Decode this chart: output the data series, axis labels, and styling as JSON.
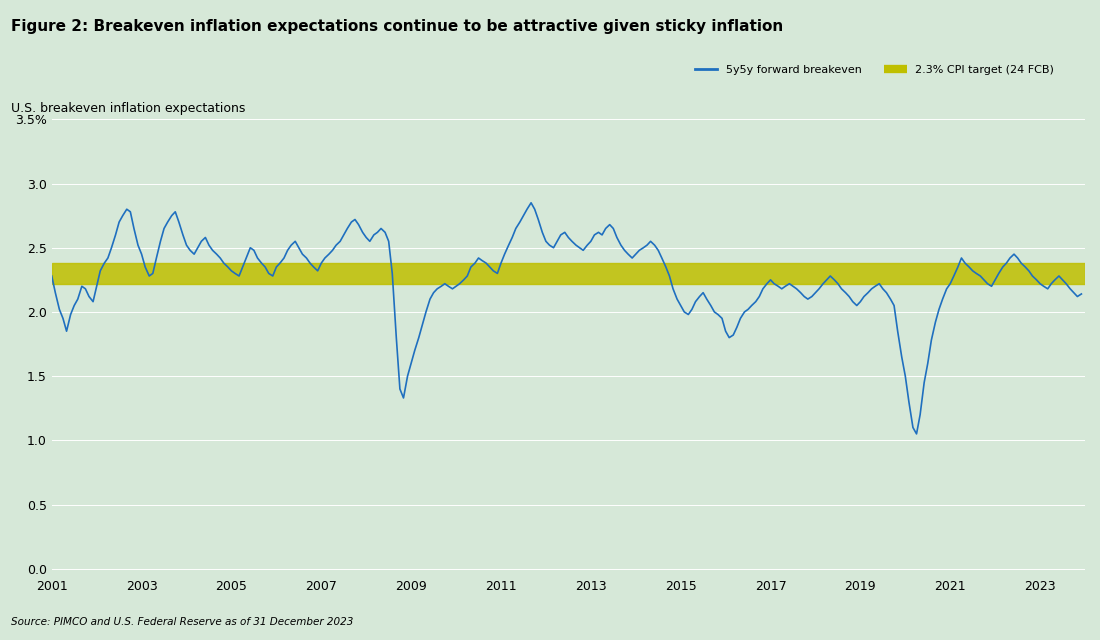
{
  "title": "Figure 2: Breakeven inflation expectations continue to be attractive given sticky inflation",
  "ylabel": "U.S. breakeven inflation expectations",
  "source": "Source: PIMCO and U.S. Federal Reserve as of 31 December 2023",
  "line_color": "#1F6FBF",
  "target_color": "#BFBF00",
  "target_value": 2.3,
  "target_band_low": 2.22,
  "target_band_high": 2.38,
  "yticks": [
    0.0,
    0.5,
    1.0,
    1.5,
    2.0,
    2.5,
    3.0,
    3.5
  ],
  "ytick_labels": [
    "0.0",
    "0.5",
    "1.0",
    "1.5",
    "2.0",
    "2.5",
    "3.0",
    "3.5%"
  ],
  "xticks": [
    2001,
    2003,
    2005,
    2007,
    2009,
    2011,
    2013,
    2015,
    2017,
    2019,
    2021,
    2023
  ],
  "ylim": [
    -0.05,
    3.7
  ],
  "background_color": "#d6e8d8",
  "legend_line1": "5y5y forward breakeven",
  "legend_line2": "2.3% CPI target (24 FCB)",
  "title_fontsize": 11,
  "label_fontsize": 9,
  "tick_fontsize": 9,
  "data": {
    "dates": [
      2001.0,
      2001.08,
      2001.17,
      2001.25,
      2001.33,
      2001.42,
      2001.5,
      2001.58,
      2001.67,
      2001.75,
      2001.83,
      2001.92,
      2002.0,
      2002.08,
      2002.17,
      2002.25,
      2002.33,
      2002.42,
      2002.5,
      2002.58,
      2002.67,
      2002.75,
      2002.83,
      2002.92,
      2003.0,
      2003.08,
      2003.17,
      2003.25,
      2003.33,
      2003.42,
      2003.5,
      2003.58,
      2003.67,
      2003.75,
      2003.83,
      2003.92,
      2004.0,
      2004.08,
      2004.17,
      2004.25,
      2004.33,
      2004.42,
      2004.5,
      2004.58,
      2004.67,
      2004.75,
      2004.83,
      2004.92,
      2005.0,
      2005.08,
      2005.17,
      2005.25,
      2005.33,
      2005.42,
      2005.5,
      2005.58,
      2005.67,
      2005.75,
      2005.83,
      2005.92,
      2006.0,
      2006.08,
      2006.17,
      2006.25,
      2006.33,
      2006.42,
      2006.5,
      2006.58,
      2006.67,
      2006.75,
      2006.83,
      2006.92,
      2007.0,
      2007.08,
      2007.17,
      2007.25,
      2007.33,
      2007.42,
      2007.5,
      2007.58,
      2007.67,
      2007.75,
      2007.83,
      2007.92,
      2008.0,
      2008.08,
      2008.17,
      2008.25,
      2008.33,
      2008.42,
      2008.5,
      2008.58,
      2008.67,
      2008.75,
      2008.83,
      2008.92,
      2009.0,
      2009.08,
      2009.17,
      2009.25,
      2009.33,
      2009.42,
      2009.5,
      2009.58,
      2009.67,
      2009.75,
      2009.83,
      2009.92,
      2010.0,
      2010.08,
      2010.17,
      2010.25,
      2010.33,
      2010.42,
      2010.5,
      2010.58,
      2010.67,
      2010.75,
      2010.83,
      2010.92,
      2011.0,
      2011.08,
      2011.17,
      2011.25,
      2011.33,
      2011.42,
      2011.5,
      2011.58,
      2011.67,
      2011.75,
      2011.83,
      2011.92,
      2012.0,
      2012.08,
      2012.17,
      2012.25,
      2012.33,
      2012.42,
      2012.5,
      2012.58,
      2012.67,
      2012.75,
      2012.83,
      2012.92,
      2013.0,
      2013.08,
      2013.17,
      2013.25,
      2013.33,
      2013.42,
      2013.5,
      2013.58,
      2013.67,
      2013.75,
      2013.83,
      2013.92,
      2014.0,
      2014.08,
      2014.17,
      2014.25,
      2014.33,
      2014.42,
      2014.5,
      2014.58,
      2014.67,
      2014.75,
      2014.83,
      2014.92,
      2015.0,
      2015.08,
      2015.17,
      2015.25,
      2015.33,
      2015.42,
      2015.5,
      2015.58,
      2015.67,
      2015.75,
      2015.83,
      2015.92,
      2016.0,
      2016.08,
      2016.17,
      2016.25,
      2016.33,
      2016.42,
      2016.5,
      2016.58,
      2016.67,
      2016.75,
      2016.83,
      2016.92,
      2017.0,
      2017.08,
      2017.17,
      2017.25,
      2017.33,
      2017.42,
      2017.5,
      2017.58,
      2017.67,
      2017.75,
      2017.83,
      2017.92,
      2018.0,
      2018.08,
      2018.17,
      2018.25,
      2018.33,
      2018.42,
      2018.5,
      2018.58,
      2018.67,
      2018.75,
      2018.83,
      2018.92,
      2019.0,
      2019.08,
      2019.17,
      2019.25,
      2019.33,
      2019.42,
      2019.5,
      2019.58,
      2019.67,
      2019.75,
      2019.83,
      2019.92,
      2020.0,
      2020.08,
      2020.17,
      2020.25,
      2020.33,
      2020.42,
      2020.5,
      2020.58,
      2020.67,
      2020.75,
      2020.83,
      2020.92,
      2021.0,
      2021.08,
      2021.17,
      2021.25,
      2021.33,
      2021.42,
      2021.5,
      2021.58,
      2021.67,
      2021.75,
      2021.83,
      2021.92,
      2022.0,
      2022.08,
      2022.17,
      2022.25,
      2022.33,
      2022.42,
      2022.5,
      2022.58,
      2022.67,
      2022.75,
      2022.83,
      2022.92,
      2023.0,
      2023.08,
      2023.17,
      2023.25,
      2023.33,
      2023.42,
      2023.5,
      2023.58,
      2023.67,
      2023.75,
      2023.83,
      2023.92
    ],
    "values": [
      2.28,
      2.15,
      2.02,
      1.95,
      1.85,
      1.98,
      2.05,
      2.1,
      2.2,
      2.18,
      2.12,
      2.08,
      2.2,
      2.32,
      2.38,
      2.42,
      2.5,
      2.6,
      2.7,
      2.75,
      2.8,
      2.78,
      2.65,
      2.52,
      2.45,
      2.35,
      2.28,
      2.3,
      2.42,
      2.55,
      2.65,
      2.7,
      2.75,
      2.78,
      2.7,
      2.6,
      2.52,
      2.48,
      2.45,
      2.5,
      2.55,
      2.58,
      2.52,
      2.48,
      2.45,
      2.42,
      2.38,
      2.35,
      2.32,
      2.3,
      2.28,
      2.35,
      2.42,
      2.5,
      2.48,
      2.42,
      2.38,
      2.35,
      2.3,
      2.28,
      2.35,
      2.38,
      2.42,
      2.48,
      2.52,
      2.55,
      2.5,
      2.45,
      2.42,
      2.38,
      2.35,
      2.32,
      2.38,
      2.42,
      2.45,
      2.48,
      2.52,
      2.55,
      2.6,
      2.65,
      2.7,
      2.72,
      2.68,
      2.62,
      2.58,
      2.55,
      2.6,
      2.62,
      2.65,
      2.62,
      2.55,
      2.3,
      1.8,
      1.4,
      1.33,
      1.5,
      1.6,
      1.7,
      1.8,
      1.9,
      2.0,
      2.1,
      2.15,
      2.18,
      2.2,
      2.22,
      2.2,
      2.18,
      2.2,
      2.22,
      2.25,
      2.28,
      2.35,
      2.38,
      2.42,
      2.4,
      2.38,
      2.35,
      2.32,
      2.3,
      2.38,
      2.45,
      2.52,
      2.58,
      2.65,
      2.7,
      2.75,
      2.8,
      2.85,
      2.8,
      2.72,
      2.62,
      2.55,
      2.52,
      2.5,
      2.55,
      2.6,
      2.62,
      2.58,
      2.55,
      2.52,
      2.5,
      2.48,
      2.52,
      2.55,
      2.6,
      2.62,
      2.6,
      2.65,
      2.68,
      2.65,
      2.58,
      2.52,
      2.48,
      2.45,
      2.42,
      2.45,
      2.48,
      2.5,
      2.52,
      2.55,
      2.52,
      2.48,
      2.42,
      2.35,
      2.28,
      2.18,
      2.1,
      2.05,
      2.0,
      1.98,
      2.02,
      2.08,
      2.12,
      2.15,
      2.1,
      2.05,
      2.0,
      1.98,
      1.95,
      1.85,
      1.8,
      1.82,
      1.88,
      1.95,
      2.0,
      2.02,
      2.05,
      2.08,
      2.12,
      2.18,
      2.22,
      2.25,
      2.22,
      2.2,
      2.18,
      2.2,
      2.22,
      2.2,
      2.18,
      2.15,
      2.12,
      2.1,
      2.12,
      2.15,
      2.18,
      2.22,
      2.25,
      2.28,
      2.25,
      2.22,
      2.18,
      2.15,
      2.12,
      2.08,
      2.05,
      2.08,
      2.12,
      2.15,
      2.18,
      2.2,
      2.22,
      2.18,
      2.15,
      2.1,
      2.05,
      1.85,
      1.65,
      1.5,
      1.3,
      1.1,
      1.05,
      1.2,
      1.45,
      1.6,
      1.78,
      1.92,
      2.02,
      2.1,
      2.18,
      2.22,
      2.28,
      2.35,
      2.42,
      2.38,
      2.35,
      2.32,
      2.3,
      2.28,
      2.25,
      2.22,
      2.2,
      2.25,
      2.3,
      2.35,
      2.38,
      2.42,
      2.45,
      2.42,
      2.38,
      2.35,
      2.32,
      2.28,
      2.25,
      2.22,
      2.2,
      2.18,
      2.22,
      2.25,
      2.28,
      2.25,
      2.22,
      2.18,
      2.15,
      2.12,
      2.14
    ]
  }
}
